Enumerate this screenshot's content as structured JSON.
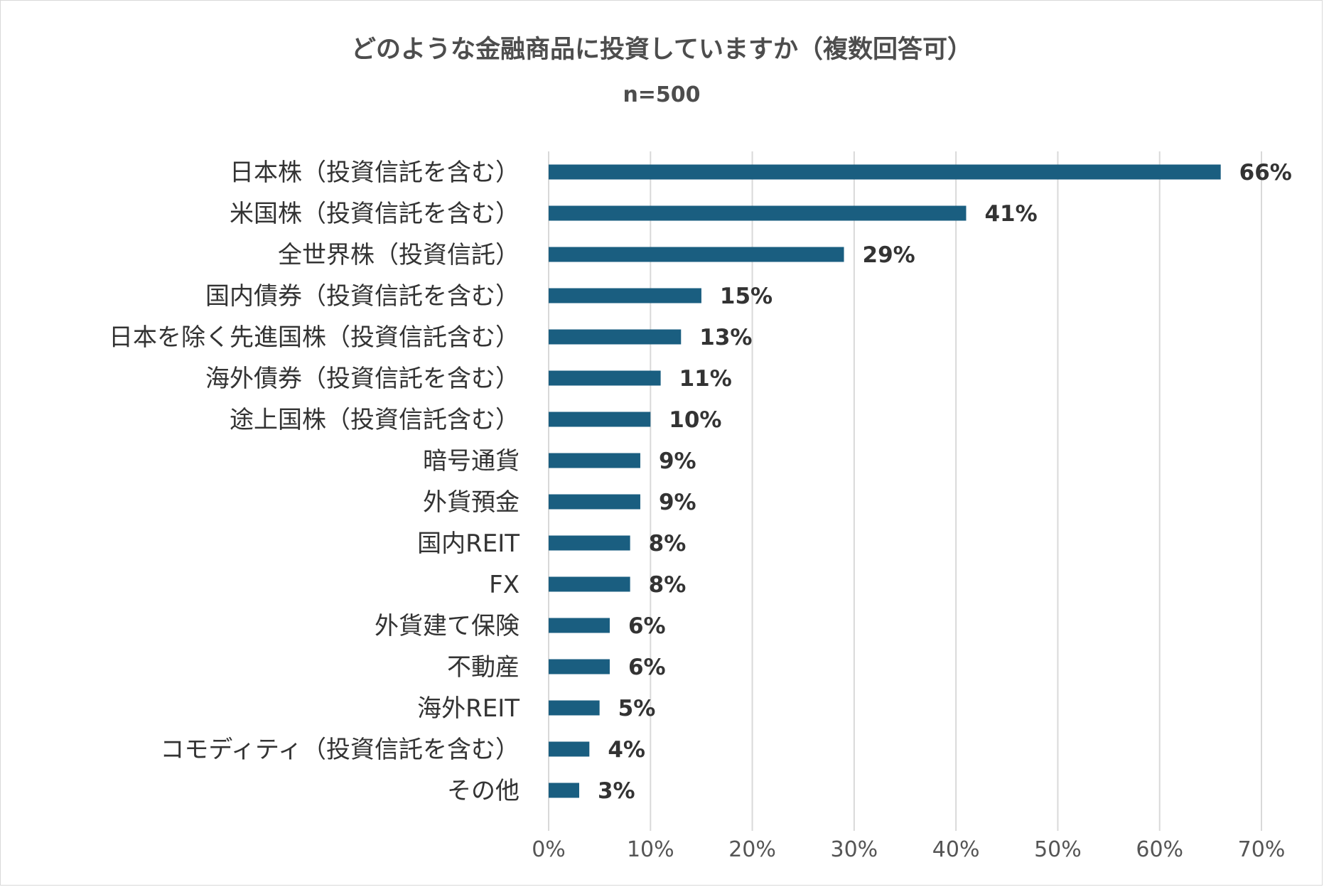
{
  "chart_data": {
    "type": "bar",
    "orientation": "horizontal",
    "title": "どのような金融商品に投資していますか（複数回答可）",
    "subtitle": "n=500",
    "categories": [
      "日本株（投資信託を含む）",
      "米国株（投資信託を含む）",
      "全世界株（投資信託）",
      "国内債券（投資信託を含む）",
      "日本を除く先進国株（投資信託含む）",
      "海外債券（投資信託を含む）",
      "途上国株（投資信託含む）",
      "暗号通貨",
      "外貨預金",
      "国内REIT",
      "FX",
      "外貨建て保険",
      "不動産",
      "海外REIT",
      "コモディティ（投資信託を含む）",
      "その他"
    ],
    "values": [
      66,
      41,
      29,
      15,
      13,
      11,
      10,
      9,
      9,
      8,
      8,
      6,
      6,
      5,
      4,
      3
    ],
    "value_labels": [
      "66%",
      "41%",
      "29%",
      "15%",
      "13%",
      "11%",
      "10%",
      "9%",
      "9%",
      "8%",
      "8%",
      "6%",
      "6%",
      "5%",
      "4%",
      "3%"
    ],
    "xlim": [
      0,
      70
    ],
    "xticks": [
      0,
      10,
      20,
      30,
      40,
      50,
      60,
      70
    ],
    "xtick_labels": [
      "0%",
      "10%",
      "20%",
      "30%",
      "40%",
      "50%",
      "60%",
      "70%"
    ],
    "grid": true,
    "xlabel": "",
    "ylabel": "",
    "bar_color": "#1a5e80"
  }
}
